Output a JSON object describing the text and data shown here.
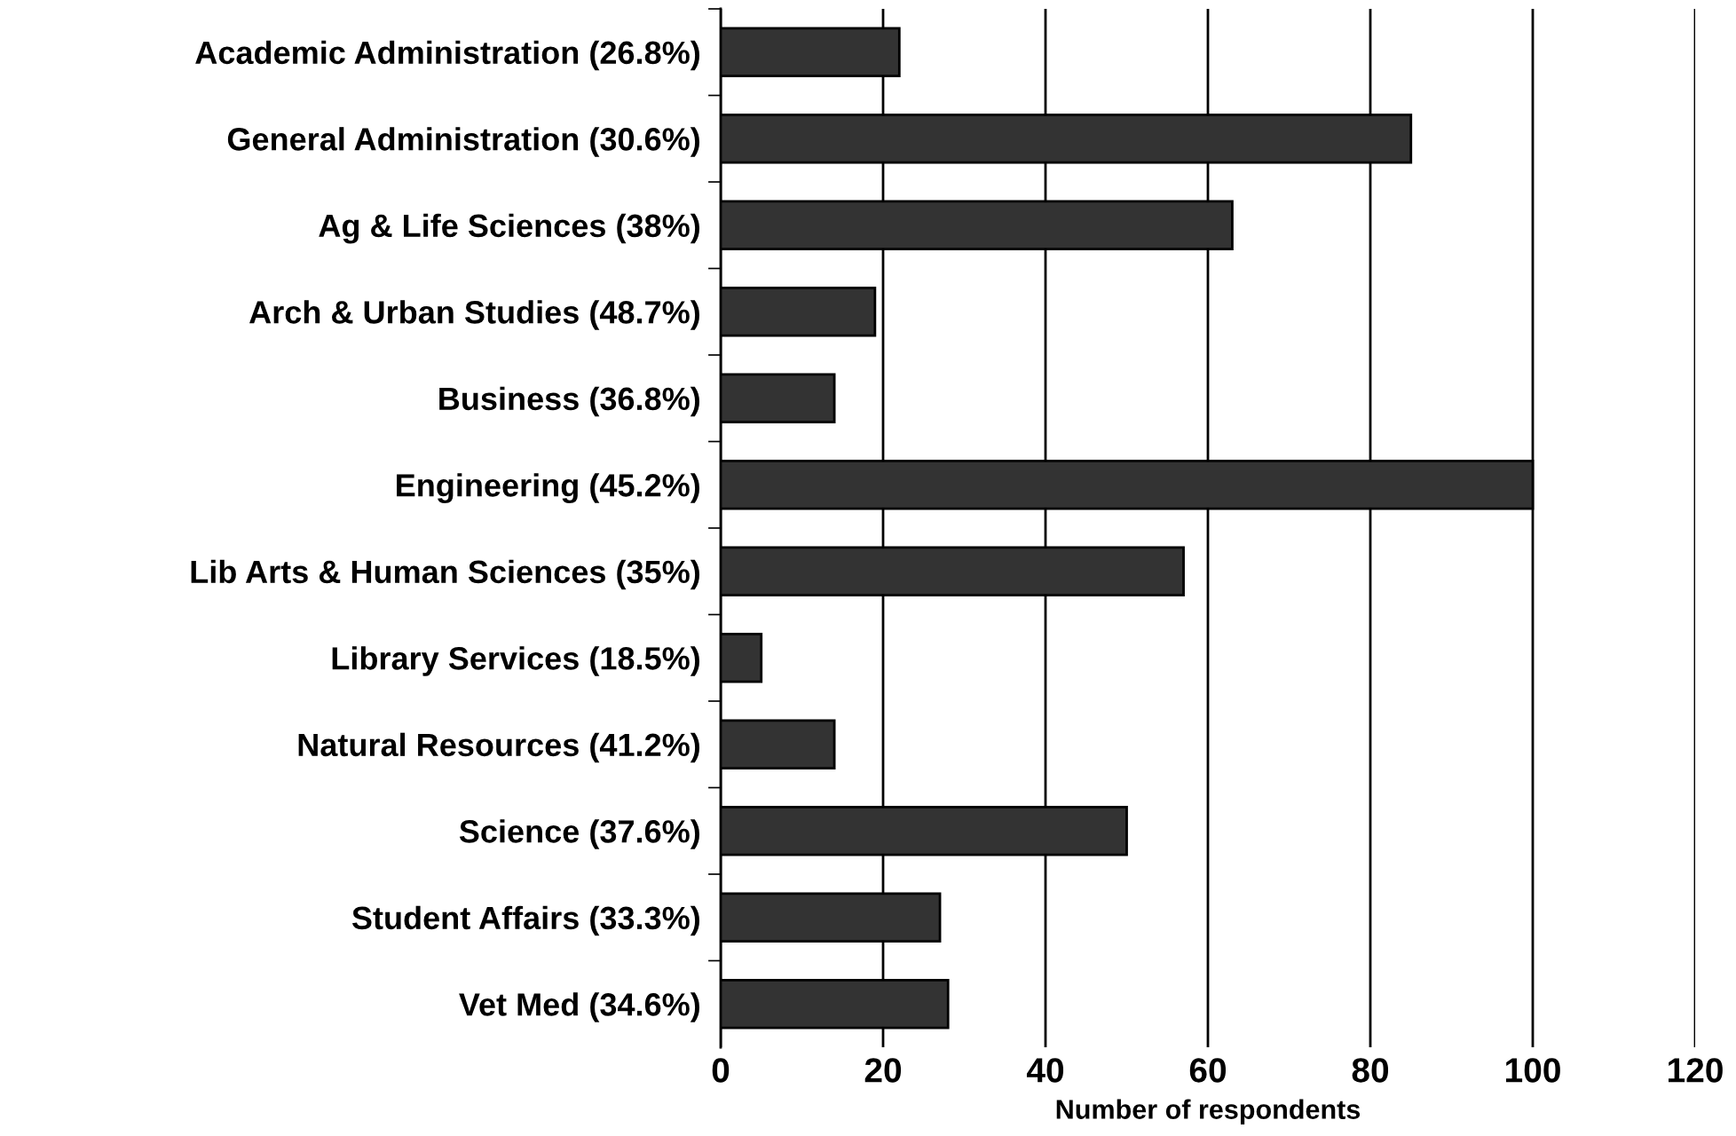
{
  "chart_data": {
    "type": "bar",
    "orientation": "horizontal",
    "xlabel": "Number of respondents",
    "categories": [
      "Academic Administration (26.8%)",
      "General Administration (30.6%)",
      "Ag & Life Sciences (38%)",
      "Arch & Urban Studies (48.7%)",
      "Business (36.8%)",
      "Engineering (45.2%)",
      "Lib Arts & Human Sciences (35%)",
      "Library Services (18.5%)",
      "Natural Resources (41.2%)",
      "Science (37.6%)",
      "Student Affairs (33.3%)",
      "Vet Med (34.6%)"
    ],
    "values": [
      22,
      85,
      63,
      19,
      14,
      100,
      57,
      5,
      14,
      50,
      27,
      28
    ],
    "color": "#333333",
    "xlim": [
      0,
      120
    ],
    "xticks": [
      0,
      20,
      40,
      60,
      80,
      100,
      120
    ],
    "grid": "x",
    "legend": false
  }
}
